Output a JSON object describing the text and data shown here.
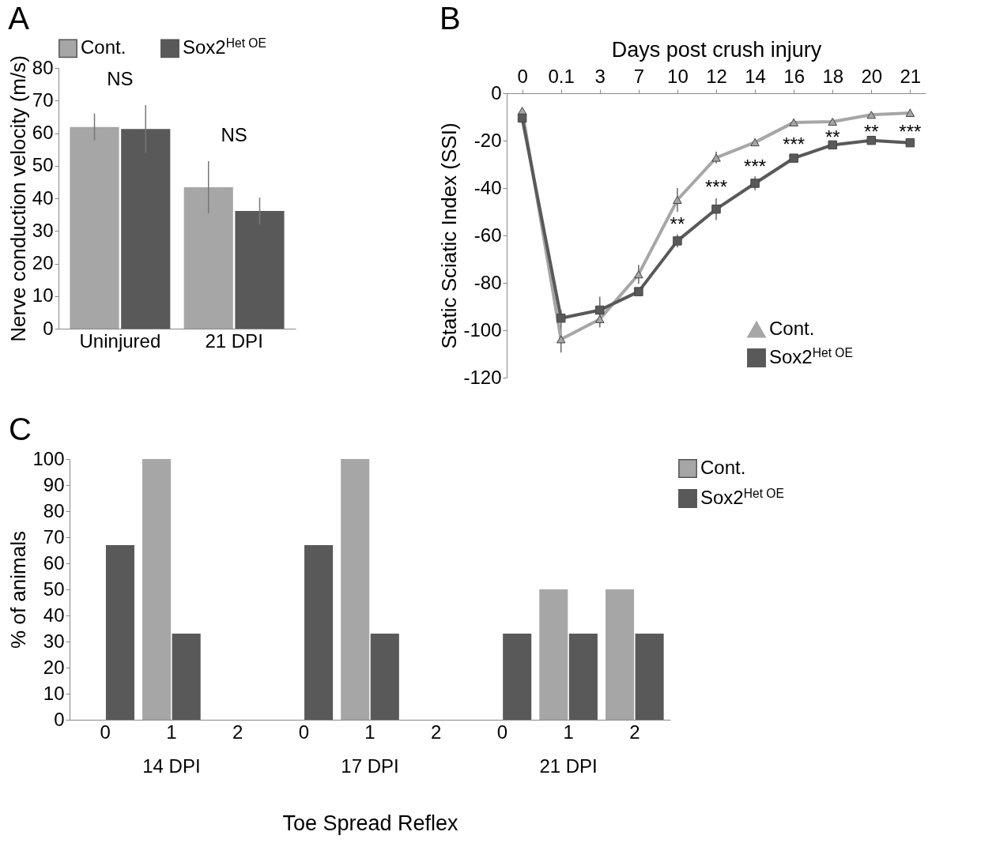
{
  "chart_data": [
    {
      "type": "bar",
      "title": "A",
      "ylabel": "Nerve conduction velocity (m/s)",
      "categories": [
        "Uninjured",
        "21 DPI"
      ],
      "series": [
        {
          "name": "Cont.",
          "color": "#a6a6a6",
          "values": [
            61.9,
            43.4
          ],
          "errors": [
            4.1,
            8
          ]
        },
        {
          "name": "Sox2$^{Het OE}$",
          "color": "#595959",
          "values": [
            61.3,
            36.1
          ],
          "errors": [
            7.3,
            4.1
          ]
        }
      ],
      "ylim": [
        0,
        80
      ],
      "yticks": [
        0,
        10,
        20,
        30,
        40,
        50,
        60,
        70,
        80
      ],
      "legend": "top",
      "annotations": [
        "NS",
        "NS"
      ]
    },
    {
      "type": "line",
      "title": "B",
      "x2label": "Days post crush injury",
      "ylabel": "Static Sciatic Index (SSI)",
      "categories": [
        "0",
        "0.1",
        "3",
        "7",
        "10",
        "12",
        "14",
        "16",
        "18",
        "20",
        "21"
      ],
      "series": [
        {
          "name": "Cont.",
          "color": "#a6a6a6",
          "marker": "triangle",
          "values": [
            -7.4,
            -103.8,
            -95.3,
            -76.4,
            -45,
            -27.2,
            -20.7,
            -12.3,
            -12,
            -9.1,
            -8.3
          ],
          "errors": [
            1,
            5.6,
            3.5,
            4,
            5,
            2.5,
            1.5,
            1.5,
            1,
            1,
            1.8
          ]
        },
        {
          "name": "Sox2$^{Het OE}$",
          "color": "#595959",
          "marker": "square",
          "values": [
            -10.5,
            -94.9,
            -91.5,
            -83.7,
            -62.3,
            -48.9,
            -38,
            -27.4,
            -21.8,
            -19.9,
            -20.9
          ],
          "errors": [
            1,
            3.5,
            5.7,
            1,
            2.8,
            4.6,
            2.9,
            1.5,
            1.5,
            1.8,
            1.2
          ]
        }
      ],
      "ylim": [
        -120,
        0
      ],
      "yticks": [
        -120,
        -100,
        -80,
        -60,
        -40,
        -20,
        0
      ],
      "legend": "bottom right",
      "annotations": [
        "**",
        "***",
        "***",
        "***",
        "**",
        "**",
        "***"
      ]
    },
    {
      "type": "bar",
      "title": "C",
      "xlabel": "Toe Spread Reflex",
      "ylabel": "% of animals",
      "categories": [
        "0",
        "1",
        "2",
        "0",
        "1",
        "2",
        "0",
        "1",
        "2"
      ],
      "series": [
        {
          "name": "Cont.",
          "color": "#a6a6a6",
          "values": [
            0,
            100,
            0,
            0,
            100,
            0,
            0,
            50,
            50
          ]
        },
        {
          "name": "Sox2$^{Het OE}$",
          "color": "#595959",
          "values": [
            67,
            33,
            0,
            67,
            33,
            0,
            33,
            33,
            33
          ]
        }
      ],
      "ylim": [
        0,
        100
      ],
      "yticks": [
        0,
        10,
        20,
        30,
        40,
        50,
        60,
        70,
        80,
        90,
        100
      ],
      "legend": "right",
      "annotations": [
        "14 DPI",
        "17 DPI",
        "21 DPI"
      ]
    }
  ]
}
